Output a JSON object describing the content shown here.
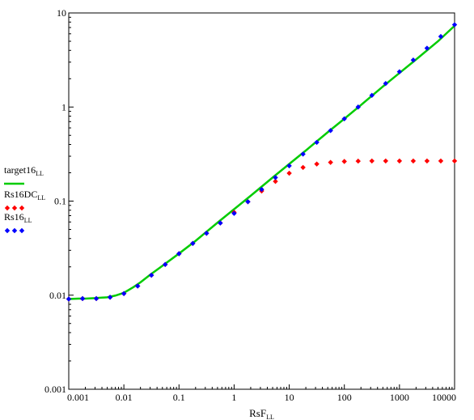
{
  "chart_data": {
    "type": "line",
    "x_scale": "log",
    "y_scale": "log",
    "xlim": [
      0.001,
      10000
    ],
    "ylim": [
      0.001,
      10
    ],
    "grid": false,
    "x_ticks": [
      "0.001",
      "0.01",
      "0.1",
      "1",
      "10",
      "100",
      "1000",
      "10000"
    ],
    "y_ticks": [
      "0.001",
      "0.01",
      "0.1",
      "1",
      "10"
    ],
    "xlabel": {
      "main": "RsF",
      "sub": "LL"
    },
    "legend_position": "left",
    "series": [
      {
        "name": "target16",
        "sub": "LL",
        "style": "line",
        "color": "#00cc00",
        "x": [
          0.001,
          0.0015,
          0.002,
          0.003,
          0.005,
          0.007,
          0.01,
          0.015,
          0.02,
          0.03,
          0.05,
          0.1,
          0.2,
          0.5,
          1,
          2,
          5,
          10,
          20,
          50,
          100,
          200,
          500,
          1000,
          2000,
          5000,
          10000
        ],
        "y": [
          0.0091,
          0.0092,
          0.0092,
          0.0093,
          0.0095,
          0.0099,
          0.0106,
          0.0122,
          0.0137,
          0.0165,
          0.0205,
          0.0277,
          0.0378,
          0.059,
          0.082,
          0.114,
          0.178,
          0.248,
          0.345,
          0.54,
          0.75,
          1.05,
          1.65,
          2.3,
          3.2,
          5.0,
          7.3
        ]
      },
      {
        "name": "Rs16DC",
        "sub": "LL",
        "style": "markers",
        "color": "#ff0000",
        "x": [
          0.001,
          0.00178,
          0.00316,
          0.00562,
          0.01,
          0.0178,
          0.0316,
          0.0562,
          0.1,
          0.178,
          0.316,
          0.562,
          1,
          1.78,
          3.16,
          5.62,
          10,
          17.8,
          31.6,
          56.2,
          100,
          178,
          316,
          562,
          1000,
          1780,
          3160,
          5620,
          10000
        ],
        "y": [
          0.0091,
          0.0092,
          0.0092,
          0.0095,
          0.0104,
          0.0125,
          0.0163,
          0.0212,
          0.0276,
          0.0355,
          0.0455,
          0.0585,
          0.076,
          0.0985,
          0.128,
          0.162,
          0.198,
          0.228,
          0.248,
          0.258,
          0.264,
          0.266,
          0.267,
          0.267,
          0.267,
          0.267,
          0.267,
          0.267,
          0.267
        ]
      },
      {
        "name": "Rs16",
        "sub": "LL",
        "style": "markers",
        "color": "#0000ff",
        "x": [
          0.001,
          0.00178,
          0.00316,
          0.00562,
          0.01,
          0.0178,
          0.0316,
          0.0562,
          0.1,
          0.178,
          0.316,
          0.562,
          1,
          1.78,
          3.16,
          5.62,
          10,
          17.8,
          31.6,
          56.2,
          100,
          178,
          316,
          562,
          1000,
          1780,
          3160,
          5620,
          10000
        ],
        "y": [
          0.0091,
          0.0092,
          0.0092,
          0.0095,
          0.0104,
          0.0125,
          0.0163,
          0.0212,
          0.0276,
          0.0355,
          0.0455,
          0.0585,
          0.074,
          0.0985,
          0.133,
          0.178,
          0.237,
          0.316,
          0.421,
          0.562,
          0.75,
          1.0,
          1.33,
          1.78,
          2.37,
          3.16,
          4.22,
          5.62,
          7.5
        ]
      }
    ]
  }
}
